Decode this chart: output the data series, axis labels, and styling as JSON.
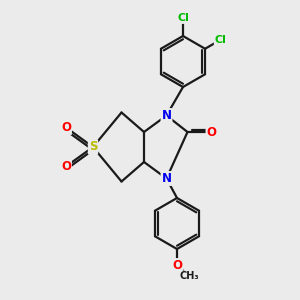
{
  "bg_color": "#ebebeb",
  "bond_color": "#1a1a1a",
  "bond_width": 1.6,
  "atom_colors": {
    "N": "#0000ee",
    "O": "#ff0000",
    "S": "#bbbb00",
    "Cl": "#00bb00",
    "C": "#1a1a1a"
  },
  "font_size_atom": 8.5
}
